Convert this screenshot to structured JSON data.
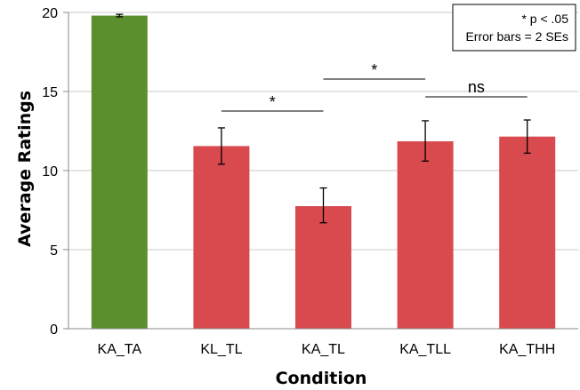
{
  "chart_data": {
    "type": "bar",
    "categories": [
      "KA_TA",
      "KL_TL",
      "KA_TL",
      "KA_TLL",
      "KA_THH"
    ],
    "values": [
      19.8,
      11.55,
      7.75,
      11.85,
      12.15
    ],
    "error_low": [
      19.72,
      10.4,
      6.7,
      10.6,
      11.1
    ],
    "error_high": [
      19.88,
      12.7,
      8.9,
      13.15,
      13.2
    ],
    "bar_colors": [
      "#5b8f2e",
      "#d94a4f",
      "#d94a4f",
      "#d94a4f",
      "#d94a4f"
    ],
    "xlabel": "Condition",
    "ylabel": "Average Ratings",
    "ylim": [
      0,
      20
    ],
    "yticks": [
      "0",
      "5",
      "10",
      "15",
      "20"
    ],
    "grid": true,
    "legend": {
      "position": "top-right",
      "lines": [
        "* p < .05",
        "Error bars = 2 SEs"
      ]
    },
    "significance": [
      {
        "from": "KL_TL",
        "to": "KA_TL",
        "label": "*"
      },
      {
        "from": "KA_TL",
        "to": "KA_TLL",
        "label": "*"
      },
      {
        "from": "KA_TLL",
        "to": "KA_THH",
        "label": "ns"
      }
    ]
  }
}
